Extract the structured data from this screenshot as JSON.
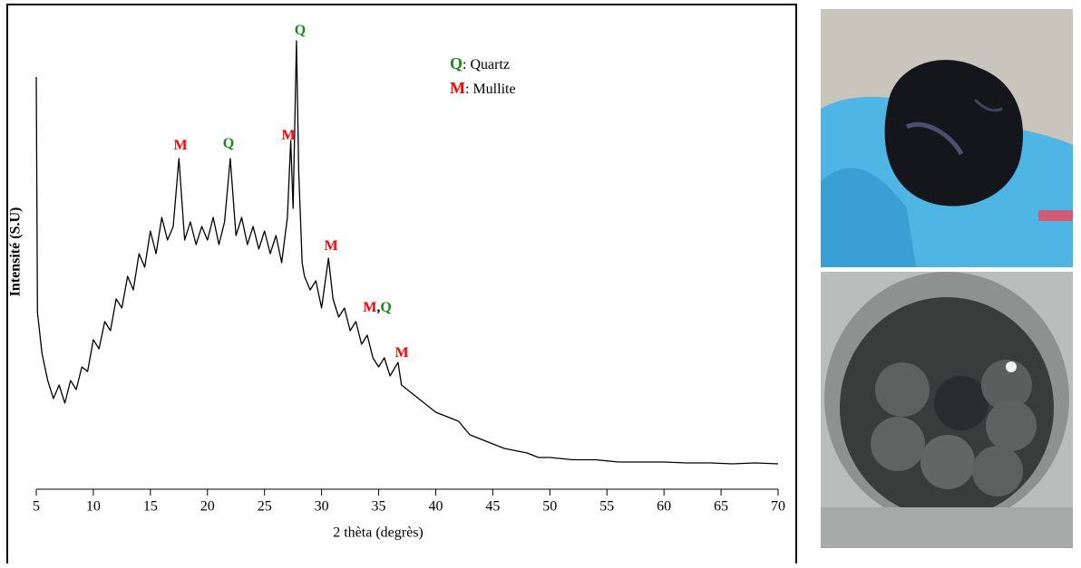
{
  "chart_data": {
    "type": "line",
    "xlabel": "2 thèta (degrès)",
    "ylabel": "Intensité (S.U)",
    "color": "#000000",
    "xlim": [
      5,
      70
    ],
    "xticks": [
      5,
      10,
      15,
      20,
      25,
      30,
      35,
      40,
      45,
      50,
      55,
      60,
      65,
      70
    ],
    "ylim": [
      0,
      100
    ],
    "x": [
      5,
      5.1,
      5.5,
      6,
      6.5,
      7,
      7.5,
      8,
      8.5,
      9,
      9.5,
      10,
      10.5,
      11,
      11.5,
      12,
      12.5,
      13,
      13.5,
      14,
      14.5,
      15,
      15.5,
      16,
      16.5,
      17,
      17.5,
      18,
      18.5,
      19,
      19.5,
      20,
      20.5,
      21,
      21.5,
      22,
      22.5,
      23,
      23.5,
      24,
      24.5,
      25,
      25.5,
      26,
      26.5,
      27,
      27.3,
      27.5,
      27.8,
      28,
      28.3,
      28.5,
      29,
      29.5,
      30,
      30.6,
      31,
      31.5,
      32,
      32.5,
      33,
      33.5,
      34,
      34.5,
      35,
      35.5,
      36,
      36.7,
      37,
      37.5,
      38,
      39,
      40,
      41,
      42,
      43,
      44,
      45,
      46,
      47,
      48,
      49,
      50,
      52,
      54,
      56,
      58,
      60,
      62,
      64,
      66,
      68,
      70
    ],
    "values": [
      91,
      39,
      30,
      24,
      20,
      23,
      19,
      24,
      22,
      27,
      26,
      33,
      31,
      37,
      35,
      42,
      40,
      47,
      44,
      52,
      49,
      57,
      52,
      60,
      55,
      58,
      73,
      55,
      59,
      54,
      58,
      55,
      60,
      54,
      59,
      73,
      56,
      60,
      54,
      58,
      53,
      57,
      52,
      56,
      50,
      60,
      77,
      62,
      99,
      70,
      50,
      47,
      44,
      46,
      40,
      51,
      42,
      38,
      40,
      35,
      37,
      32,
      34,
      29,
      27,
      29,
      25,
      28,
      23,
      22,
      21,
      19,
      17,
      16,
      15,
      12,
      11,
      10,
      9,
      8.5,
      8,
      7,
      7,
      6.5,
      6.5,
      6,
      6,
      6,
      5.8,
      5.8,
      5.6,
      5.8,
      5.6
    ],
    "annotations": [
      {
        "parts": [
          {
            "text": "Q",
            "color": "#1a8a1a"
          }
        ]
      },
      {
        "parts": [
          {
            "text": "M",
            "color": "#ff0000"
          }
        ]
      },
      {
        "parts": [
          {
            "text": "Q",
            "color": "#1a8a1a"
          }
        ]
      },
      {
        "parts": [
          {
            "text": "M",
            "color": "#ff0000"
          }
        ]
      },
      {
        "parts": [
          {
            "text": "M",
            "color": "#ff0000"
          }
        ]
      },
      {
        "parts": [
          {
            "text": "M",
            "color": "#ff0000"
          },
          {
            "text": ",",
            "color": "#000000"
          },
          {
            "text": "Q",
            "color": "#1a8a1a"
          }
        ]
      },
      {
        "parts": [
          {
            "text": "M",
            "color": "#ff0000"
          }
        ]
      }
    ],
    "legend": [
      {
        "symbol": "Q",
        "label": ": Quartz",
        "color": "#1a8a1a"
      },
      {
        "symbol": "M",
        "label": ": Mullite",
        "color": "#ff0000"
      }
    ]
  }
}
